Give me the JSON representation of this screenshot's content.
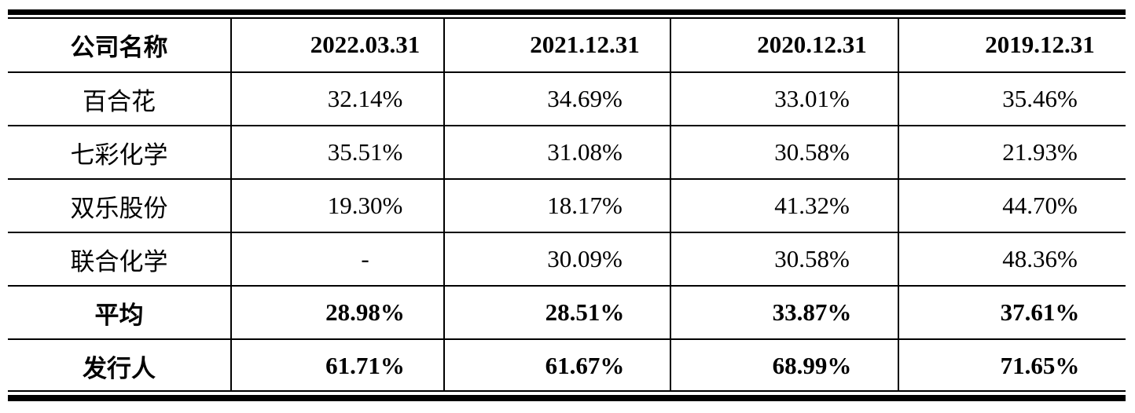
{
  "table": {
    "header": [
      "公司名称",
      "2022.03.31",
      "2021.12.31",
      "2020.12.31",
      "2019.12.31"
    ],
    "rows": [
      [
        "百合花",
        "32.14%",
        "34.69%",
        "33.01%",
        "35.46%"
      ],
      [
        "七彩化学",
        "35.51%",
        "31.08%",
        "30.58%",
        "21.93%"
      ],
      [
        "双乐股份",
        "19.30%",
        "18.17%",
        "41.32%",
        "44.70%"
      ],
      [
        "联合化学",
        "-",
        "30.09%",
        "30.58%",
        "48.36%"
      ],
      [
        "平均",
        "28.98%",
        "28.51%",
        "33.87%",
        "37.61%"
      ],
      [
        "发行人",
        "61.71%",
        "61.67%",
        "68.99%",
        "71.65%"
      ]
    ]
  }
}
